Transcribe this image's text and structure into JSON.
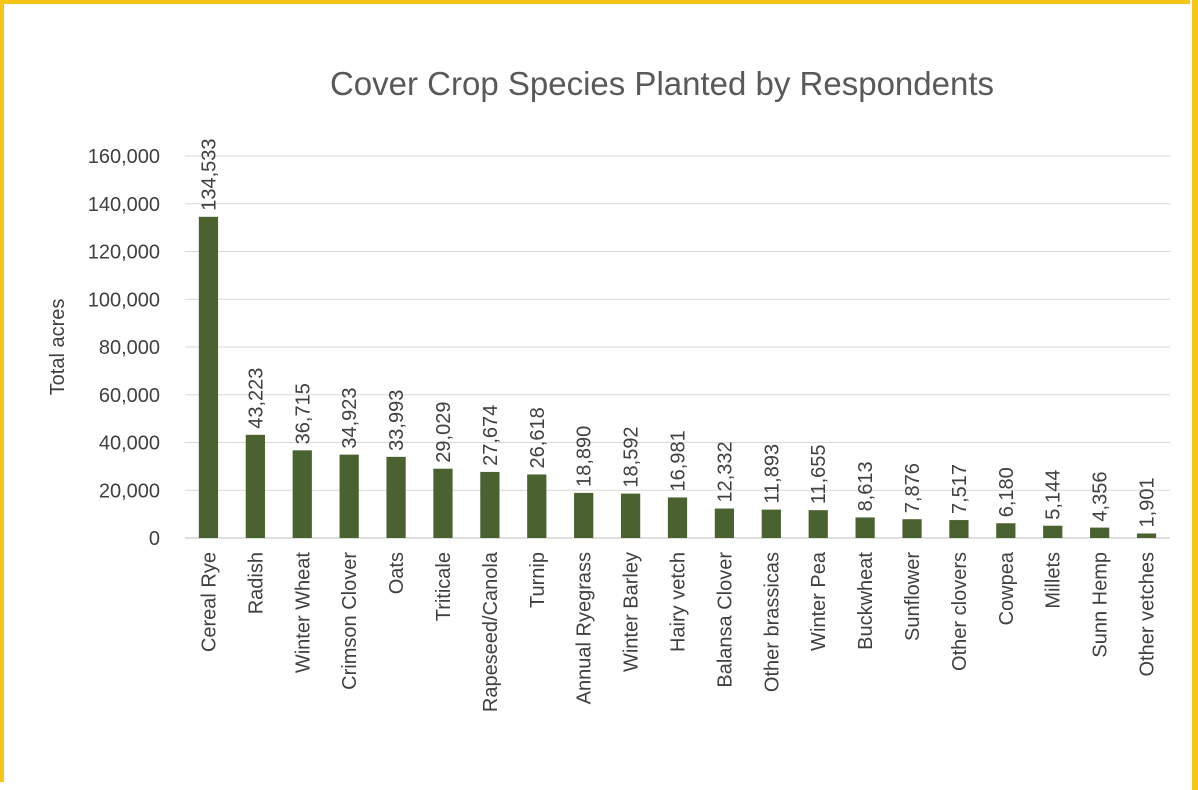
{
  "colors": {
    "bar": "#4a6130",
    "border": "#f5c518"
  },
  "chart_data": {
    "type": "bar",
    "title": "Cover Crop Species Planted by Respondents",
    "xlabel": "",
    "ylabel": "Total acres",
    "ylim": [
      0,
      160000
    ],
    "yticks": [
      "0",
      "20,000",
      "40,000",
      "60,000",
      "80,000",
      "100,000",
      "120,000",
      "140,000",
      "160,000"
    ],
    "grid": true,
    "legend": "none",
    "categories": [
      "Cereal Rye",
      "Radish",
      "Winter Wheat",
      "Crimson Clover",
      "Oats",
      "Triticale",
      "Rapeseed/Canola",
      "Turnip",
      "Annual Ryegrass",
      "Winter Barley",
      "Hairy vetch",
      "Balansa Clover",
      "Other brassicas",
      "Winter Pea",
      "Buckwheat",
      "Sunflower",
      "Other clovers",
      "Cowpea",
      "Millets",
      "Sunn Hemp",
      "Other vetches"
    ],
    "values": [
      134533,
      43223,
      36715,
      34923,
      33993,
      29029,
      27674,
      26618,
      18890,
      18592,
      16981,
      12332,
      11893,
      11655,
      8613,
      7876,
      7517,
      6180,
      5144,
      4356,
      1901
    ],
    "data_labels": [
      "134,533",
      "43,223",
      "36,715",
      "34,923",
      "33,993",
      "29,029",
      "27,674",
      "26,618",
      "18,890",
      "18,592",
      "16,981",
      "12,332",
      "11,893",
      "11,655",
      "8,613",
      "7,876",
      "7,517",
      "6,180",
      "5,144",
      "4,356",
      "1,901"
    ]
  }
}
